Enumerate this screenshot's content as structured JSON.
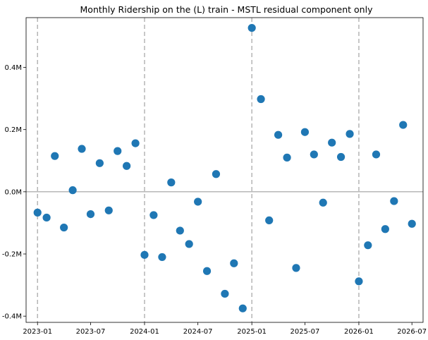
{
  "chart_data": {
    "type": "scatter",
    "title": "Monthly Ridership on the (L) train - MSTL residual component only",
    "xlabel": "",
    "ylabel": "",
    "x_tick_labels": [
      "2023-01",
      "2023-07",
      "2024-01",
      "2024-07",
      "2025-01",
      "2025-07",
      "2026-01",
      "2026-07"
    ],
    "x_tick_dates": [
      "2023-01-01",
      "2023-07-01",
      "2024-01-01",
      "2024-07-01",
      "2025-01-01",
      "2025-07-01",
      "2026-01-01",
      "2026-07-01"
    ],
    "y_tick_labels": [
      "-0.4M",
      "-0.2M",
      "0.0M",
      "0.2M",
      "0.4M"
    ],
    "y_tick_values": [
      -400000,
      -200000,
      0,
      200000,
      400000
    ],
    "xlim": [
      "2022-11-23",
      "2026-08-08"
    ],
    "ylim": [
      -420000,
      560000
    ],
    "horizontal_reference": 0,
    "vertical_reference_dates": [
      "2023-01-01",
      "2024-01-01",
      "2025-01-01",
      "2026-01-01"
    ],
    "grid": false,
    "marker_color": "#1f77b4",
    "points": [
      {
        "x": "2023-01-01",
        "y": -67000
      },
      {
        "x": "2023-02-01",
        "y": -83000
      },
      {
        "x": "2023-03-01",
        "y": 115000
      },
      {
        "x": "2023-04-01",
        "y": -115000
      },
      {
        "x": "2023-05-01",
        "y": 5000
      },
      {
        "x": "2023-06-01",
        "y": 138000
      },
      {
        "x": "2023-07-01",
        "y": -72000
      },
      {
        "x": "2023-08-01",
        "y": 92000
      },
      {
        "x": "2023-09-01",
        "y": -60000
      },
      {
        "x": "2023-10-01",
        "y": 131000
      },
      {
        "x": "2023-11-01",
        "y": 83000
      },
      {
        "x": "2023-12-01",
        "y": 156000
      },
      {
        "x": "2024-01-01",
        "y": -203000
      },
      {
        "x": "2024-02-01",
        "y": -75000
      },
      {
        "x": "2024-03-01",
        "y": -210000
      },
      {
        "x": "2024-04-01",
        "y": 30000
      },
      {
        "x": "2024-05-01",
        "y": -125000
      },
      {
        "x": "2024-06-01",
        "y": -168000
      },
      {
        "x": "2024-07-01",
        "y": -32000
      },
      {
        "x": "2024-08-01",
        "y": -255000
      },
      {
        "x": "2024-09-01",
        "y": 57000
      },
      {
        "x": "2024-10-01",
        "y": -328000
      },
      {
        "x": "2024-11-01",
        "y": -230000
      },
      {
        "x": "2024-12-01",
        "y": -375000
      },
      {
        "x": "2025-01-01",
        "y": 527000
      },
      {
        "x": "2025-02-01",
        "y": 298000
      },
      {
        "x": "2025-03-01",
        "y": -92000
      },
      {
        "x": "2025-04-01",
        "y": 183000
      },
      {
        "x": "2025-05-01",
        "y": 110000
      },
      {
        "x": "2025-06-01",
        "y": -245000
      },
      {
        "x": "2025-07-01",
        "y": 192000
      },
      {
        "x": "2025-08-01",
        "y": 120000
      },
      {
        "x": "2025-09-01",
        "y": -35000
      },
      {
        "x": "2025-10-01",
        "y": 158000
      },
      {
        "x": "2025-11-01",
        "y": 112000
      },
      {
        "x": "2025-12-01",
        "y": 186000
      },
      {
        "x": "2026-01-01",
        "y": -288000
      },
      {
        "x": "2026-02-01",
        "y": -172000
      },
      {
        "x": "2026-03-01",
        "y": 120000
      },
      {
        "x": "2026-04-01",
        "y": -120000
      },
      {
        "x": "2026-05-01",
        "y": -30000
      },
      {
        "x": "2026-06-01",
        "y": 215000
      },
      {
        "x": "2026-07-01",
        "y": -103000
      }
    ]
  }
}
